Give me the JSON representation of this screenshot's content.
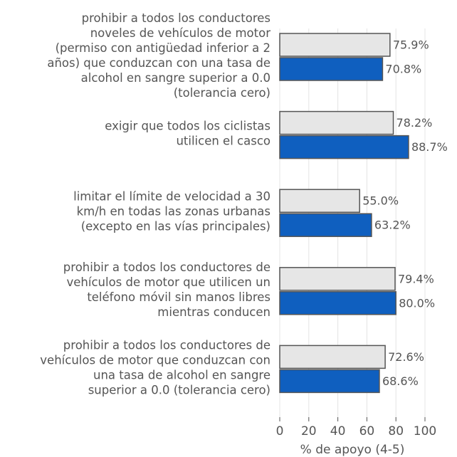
{
  "chart_data": {
    "type": "barh",
    "categories": [
      [
        "prohibir a todos los conductores",
        "noveles de vehículos de motor",
        "(permiso con antigüedad inferior a 2",
        "años) que conduzcan con una tasa de",
        "alcohol en sangre superior a 0.0",
        "(tolerancia cero)"
      ],
      [
        "exigir que todos los ciclistas",
        "utilicen el casco"
      ],
      [
        "limitar el límite de velocidad a 30",
        "km/h en todas las zonas urbanas",
        "(excepto en las vías principales)"
      ],
      [
        "prohibir a todos los conductores de",
        "vehículos de motor que utilicen un",
        "teléfono móvil sin manos libres",
        "mientras conducen"
      ],
      [
        "prohibir a todos los conductores de",
        "vehículos de motor que conduzcan con",
        "una tasa de alcohol en sangre",
        "superior a 0.0 (tolerancia cero)"
      ]
    ],
    "series": [
      {
        "color": "#e6e6e6",
        "values": [
          75.9,
          78.2,
          55.0,
          79.4,
          72.6
        ],
        "value_labels": [
          "75.9%",
          "78.2%",
          "55.0%",
          "79.4%",
          "72.6%"
        ]
      },
      {
        "color": "#0f5fbf",
        "values": [
          70.8,
          88.7,
          63.2,
          80.0,
          68.6
        ],
        "value_labels": [
          "70.8%",
          "88.7%",
          "63.2%",
          "80.0%",
          "68.6%"
        ]
      }
    ],
    "xlabel": "% de apoyo (4-5)",
    "xlim": [
      0,
      100
    ],
    "xticks": [
      0,
      20,
      40,
      60,
      80,
      100
    ],
    "grid": true
  }
}
